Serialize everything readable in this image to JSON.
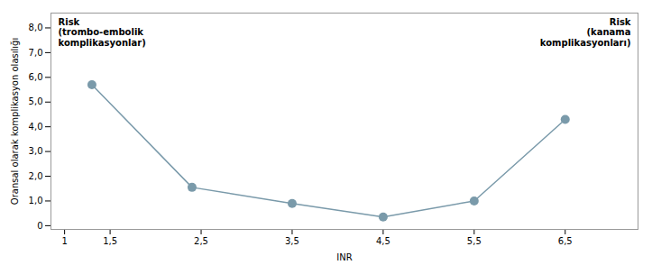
{
  "chart_data": {
    "type": "line",
    "marker": "circle",
    "color": "#7a9aaa",
    "x": [
      1.3,
      2.4,
      3.5,
      4.5,
      5.5,
      6.5
    ],
    "values": [
      5.7,
      1.55,
      0.9,
      0.35,
      1.0,
      4.3
    ],
    "x_label": "INR",
    "y_label": "Oransal olarak komplikasyon olasılığı",
    "xlim": [
      0.85,
      7.3
    ],
    "xticks": [
      1,
      {
        "value": 1.5,
        "label": "1,5"
      },
      {
        "value": 2.5,
        "label": "2,5"
      },
      {
        "value": 3.5,
        "label": "3,5"
      },
      {
        "value": 4.5,
        "label": "4,5"
      },
      {
        "value": 5.5,
        "label": "5,5"
      },
      {
        "value": 6.5,
        "label": "6,5"
      }
    ],
    "ylim": [
      -0.15,
      8.6
    ],
    "yticks": [
      0,
      {
        "value": 1.0,
        "label": "1,0"
      },
      {
        "value": 2.0,
        "label": "2,0"
      },
      {
        "value": 3.0,
        "label": "3,0"
      },
      {
        "value": 4.0,
        "label": "4,0"
      },
      {
        "value": 5.0,
        "label": "5,0"
      },
      {
        "value": 6.0,
        "label": "6,0"
      },
      {
        "value": 7.0,
        "label": "7,0"
      },
      {
        "value": 8.0,
        "label": "8,0"
      }
    ],
    "annotations": [
      "Risk\n(trombo-embolik\nkomplikasyonlar)",
      "Risk\n(kanama\nkomplikasyonları)"
    ]
  }
}
